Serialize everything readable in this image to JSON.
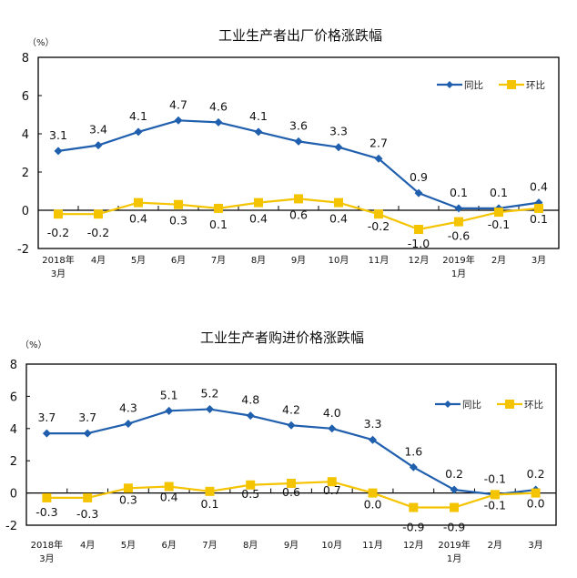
{
  "chart_data": [
    {
      "type": "line",
      "title": "工业生产者出厂价格涨跌幅",
      "unit_label": "（%）",
      "xlabel": "",
      "ylabel": "（%）",
      "ylim": [
        -2,
        8
      ],
      "yticks": [
        -2,
        0,
        2,
        4,
        6,
        8
      ],
      "categories": [
        "2018年\n3月",
        "4月",
        "5月",
        "6月",
        "7月",
        "8月",
        "9月",
        "10月",
        "11月",
        "12月",
        "2019年\n1月",
        "2月",
        "3月"
      ],
      "category_lines": [
        [
          "2018年",
          "3月"
        ],
        [
          "4月"
        ],
        [
          "5月"
        ],
        [
          "6月"
        ],
        [
          "7月"
        ],
        [
          "8月"
        ],
        [
          "9月"
        ],
        [
          "10月"
        ],
        [
          "11月"
        ],
        [
          "12月"
        ],
        [
          "2019年",
          "1月"
        ],
        [
          "2月"
        ],
        [
          "3月"
        ]
      ],
      "legend_position": "top-right",
      "grid": false,
      "series": [
        {
          "name": "同比",
          "color": "#1F5FAD",
          "marker": "diamond",
          "values": [
            3.1,
            3.4,
            4.1,
            4.7,
            4.6,
            4.1,
            3.6,
            3.3,
            2.7,
            0.9,
            0.1,
            0.1,
            0.4
          ]
        },
        {
          "name": "环比",
          "color": "#F5C400",
          "marker": "square",
          "values": [
            -0.2,
            -0.2,
            0.4,
            0.3,
            0.1,
            0.4,
            0.6,
            0.4,
            -0.2,
            -1.0,
            -0.6,
            -0.1,
            0.1
          ]
        }
      ]
    },
    {
      "type": "line",
      "title": "工业生产者购进价格涨跌幅",
      "unit_label": "（%）",
      "xlabel": "",
      "ylabel": "（%）",
      "ylim": [
        -2,
        8
      ],
      "yticks": [
        -2,
        0,
        2,
        4,
        6,
        8
      ],
      "categories": [
        "2018年\n3月",
        "4月",
        "5月",
        "6月",
        "7月",
        "8月",
        "9月",
        "10月",
        "11月",
        "12月",
        "2019年\n1月",
        "2月",
        "3月"
      ],
      "category_lines": [
        [
          "2018年",
          "3月"
        ],
        [
          "4月"
        ],
        [
          "5月"
        ],
        [
          "6月"
        ],
        [
          "7月"
        ],
        [
          "8月"
        ],
        [
          "9月"
        ],
        [
          "10月"
        ],
        [
          "11月"
        ],
        [
          "12月"
        ],
        [
          "2019年",
          "1月"
        ],
        [
          "2月"
        ],
        [
          "3月"
        ]
      ],
      "legend_position": "top-right",
      "grid": false,
      "series": [
        {
          "name": "同比",
          "color": "#1F5FAD",
          "marker": "diamond",
          "values": [
            3.7,
            3.7,
            4.3,
            5.1,
            5.2,
            4.8,
            4.2,
            4.0,
            3.3,
            1.6,
            0.2,
            -0.1,
            0.2
          ]
        },
        {
          "name": "环比",
          "color": "#F5C400",
          "marker": "square",
          "values": [
            -0.3,
            -0.3,
            0.3,
            0.4,
            0.1,
            0.5,
            0.6,
            0.7,
            0.0,
            -0.9,
            -0.9,
            -0.1,
            0.0
          ]
        }
      ]
    }
  ]
}
